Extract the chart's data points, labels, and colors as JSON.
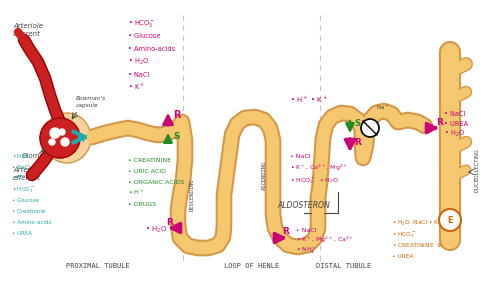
{
  "bg": "#ffffff",
  "tc": "#f5c870",
  "te": "#d4974a",
  "red": "#cc2020",
  "red_dark": "#990000",
  "mc": "#cc0077",
  "gc": "#228B22",
  "teal": "#20aaaa",
  "tm": "#cc0077",
  "tg": "#228B22",
  "to": "#cc6600",
  "td": "#444444",
  "dash": "#bbbbbb",
  "prox_top": [
    "HCO₃⁻",
    "Glucose",
    "Amino-acids",
    "H₂O",
    "NaCl",
    "K⁺"
  ],
  "prox_bot_sec": [
    "CREATININE",
    "URIC ACID",
    "ORGANIC ACIDS",
    "H⁺",
    "DRUGS"
  ],
  "filtrate": [
    "H₂O",
    "NaCl",
    "K⁺",
    "HCO₃⁻",
    "Glucose",
    "Creatinine",
    "Amino-acids",
    "UREA"
  ],
  "distal_top": "H⁺  K⁺",
  "distal_mid": [
    "NaCl",
    "K⁺, Ca²⁺, Mg²⁺",
    "HCO₃⁻  H₂O"
  ],
  "loop_bot_L": [
    "NaCl",
    "K⁺, Mg²⁺, Ca²⁺",
    "NH₄⁺"
  ],
  "cd_right": [
    "NaCl",
    "UREA",
    "H₂O"
  ],
  "cd_bot": [
    "H₂O  NaCl  K⁺",
    "HCO₃⁻",
    "CREATININE",
    "UREA"
  ]
}
